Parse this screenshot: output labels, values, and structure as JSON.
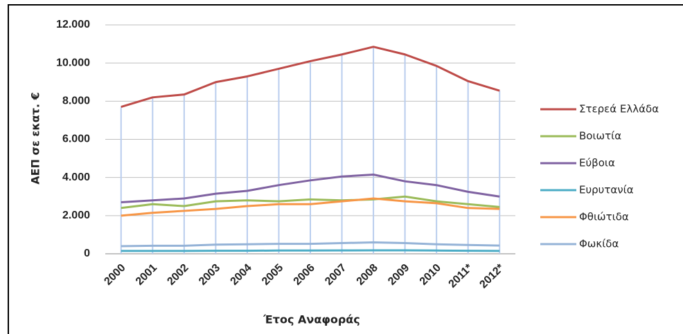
{
  "chart_data": {
    "type": "line",
    "y_label": "ΑΕΠ σε εκατ. €",
    "x_label": "Έτος Αναφοράς",
    "categories": [
      "2000",
      "2001",
      "2002",
      "2003",
      "2004",
      "2005",
      "2006",
      "2007",
      "2008",
      "2009",
      "2010",
      "2011*",
      "2012*"
    ],
    "ylim": [
      0,
      12000
    ],
    "yticks": [
      0,
      {
        "value": 2000,
        "label": "2.000"
      },
      {
        "value": 4000,
        "label": "4.000"
      },
      {
        "value": 6000,
        "label": "6.000"
      },
      {
        "value": 8000,
        "label": "8.000"
      },
      {
        "value": 10000,
        "label": "10.000"
      },
      {
        "value": 12000,
        "label": "12.000"
      }
    ],
    "grid": true,
    "legend": "right",
    "series": [
      {
        "name": "Στερεά Ελλάδα",
        "color": "#be4b48",
        "values": [
          7700,
          8200,
          8350,
          9000,
          9300,
          9700,
          10100,
          10450,
          10850,
          10450,
          9850,
          9050,
          8550
        ]
      },
      {
        "name": "Βοιωτία",
        "color": "#9bbb59",
        "values": [
          2400,
          2600,
          2500,
          2750,
          2800,
          2750,
          2850,
          2800,
          2850,
          3000,
          2750,
          2600,
          2450
        ]
      },
      {
        "name": "Εύβοια",
        "color": "#7f62a1",
        "values": [
          2700,
          2800,
          2900,
          3150,
          3300,
          3600,
          3850,
          4050,
          4150,
          3800,
          3600,
          3250,
          3000
        ]
      },
      {
        "name": "Ευρυτανία",
        "color": "#4bacc6",
        "values": [
          150,
          150,
          150,
          160,
          160,
          170,
          170,
          175,
          180,
          180,
          170,
          160,
          150
        ]
      },
      {
        "name": "Φθιώτιδα",
        "color": "#f79646",
        "values": [
          2000,
          2150,
          2250,
          2350,
          2500,
          2600,
          2600,
          2750,
          2900,
          2750,
          2650,
          2400,
          2350
        ]
      },
      {
        "name": "Φωκίδα",
        "color": "#95b3d7",
        "values": [
          400,
          420,
          420,
          480,
          500,
          520,
          520,
          560,
          600,
          560,
          500,
          460,
          430
        ]
      }
    ]
  }
}
